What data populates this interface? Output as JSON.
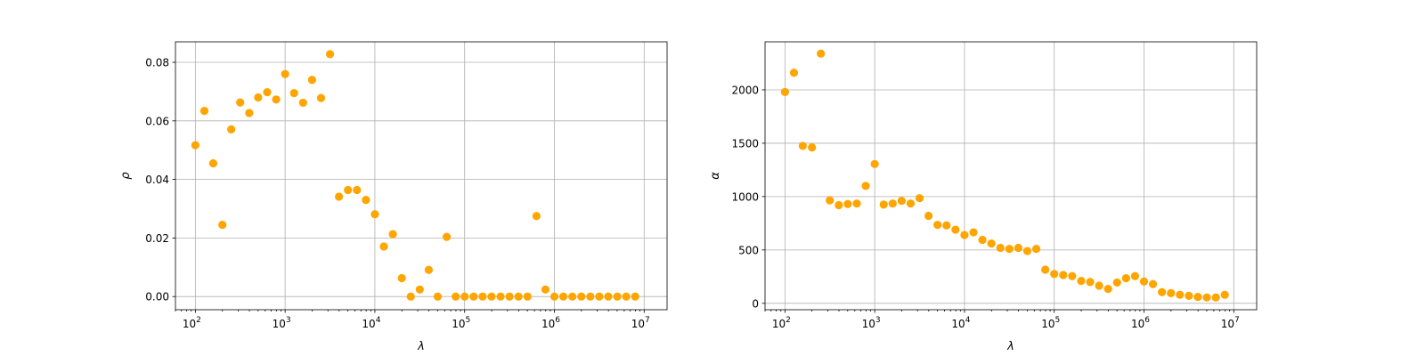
{
  "chart_data": [
    {
      "type": "scatter",
      "title": "",
      "xlabel": "λ",
      "ylabel": "ρ",
      "x_scale": "log",
      "xlim": [
        60,
        18000000
      ],
      "ylim": [
        -0.0045,
        0.087
      ],
      "grid": true,
      "legend": "none",
      "color": "#FFA500",
      "xticks": [
        {
          "value": 100,
          "base": "10",
          "exp": "2"
        },
        {
          "value": 1000,
          "base": "10",
          "exp": "3"
        },
        {
          "value": 10000,
          "base": "10",
          "exp": "4"
        },
        {
          "value": 100000,
          "base": "10",
          "exp": "5"
        },
        {
          "value": 1000000,
          "base": "10",
          "exp": "6"
        },
        {
          "value": 10000000,
          "base": "10",
          "exp": "7"
        }
      ],
      "yticks": [
        {
          "value": 0.0,
          "label": "0.00"
        },
        {
          "value": 0.02,
          "label": "0.02"
        },
        {
          "value": 0.04,
          "label": "0.04"
        },
        {
          "value": 0.06,
          "label": "0.06"
        },
        {
          "value": 0.08,
          "label": "0.08"
        }
      ],
      "points": [
        [
          100,
          0.0517
        ],
        [
          126,
          0.0634
        ],
        [
          158,
          0.0455
        ],
        [
          200,
          0.0245
        ],
        [
          251,
          0.0571
        ],
        [
          316,
          0.0663
        ],
        [
          398,
          0.0627
        ],
        [
          501,
          0.068
        ],
        [
          631,
          0.0698
        ],
        [
          794,
          0.0673
        ],
        [
          1000,
          0.076
        ],
        [
          1259,
          0.0695
        ],
        [
          1585,
          0.0662
        ],
        [
          1995,
          0.074
        ],
        [
          2512,
          0.0678
        ],
        [
          3162,
          0.0828
        ],
        [
          3981,
          0.0341
        ],
        [
          5012,
          0.0364
        ],
        [
          6310,
          0.0364
        ],
        [
          7943,
          0.033
        ],
        [
          10000,
          0.0281
        ],
        [
          12589,
          0.0171
        ],
        [
          15849,
          0.0213
        ],
        [
          19953,
          0.0063
        ],
        [
          25119,
          0.0
        ],
        [
          31623,
          0.0024
        ],
        [
          39811,
          0.0091
        ],
        [
          50119,
          0.0
        ],
        [
          63096,
          0.0204
        ],
        [
          79433,
          0.0
        ],
        [
          100000,
          0.0
        ],
        [
          125893,
          0.0
        ],
        [
          158489,
          0.0
        ],
        [
          199526,
          0.0
        ],
        [
          251189,
          0.0
        ],
        [
          316228,
          0.0
        ],
        [
          398107,
          0.0
        ],
        [
          501187,
          0.0
        ],
        [
          630957,
          0.0275
        ],
        [
          794328,
          0.0024
        ],
        [
          1000000,
          0.0
        ],
        [
          1258925,
          0.0
        ],
        [
          1584893,
          0.0
        ],
        [
          1995262,
          0.0
        ],
        [
          2511886,
          0.0
        ],
        [
          3162278,
          0.0
        ],
        [
          3981072,
          0.0
        ],
        [
          5011872,
          0.0
        ],
        [
          6309573,
          0.0
        ],
        [
          7943282,
          0.0
        ]
      ]
    },
    {
      "type": "scatter",
      "title": "",
      "xlabel": "λ",
      "ylabel": "α",
      "x_scale": "log",
      "xlim": [
        60,
        18000000
      ],
      "ylim": [
        -60,
        2450
      ],
      "grid": true,
      "legend": "none",
      "color": "#FFA500",
      "xticks": [
        {
          "value": 100,
          "base": "10",
          "exp": "2"
        },
        {
          "value": 1000,
          "base": "10",
          "exp": "3"
        },
        {
          "value": 10000,
          "base": "10",
          "exp": "4"
        },
        {
          "value": 100000,
          "base": "10",
          "exp": "5"
        },
        {
          "value": 1000000,
          "base": "10",
          "exp": "6"
        },
        {
          "value": 10000000,
          "base": "10",
          "exp": "7"
        }
      ],
      "yticks": [
        {
          "value": 0,
          "label": "0"
        },
        {
          "value": 500,
          "label": "500"
        },
        {
          "value": 1000,
          "label": "1000"
        },
        {
          "value": 1500,
          "label": "1500"
        },
        {
          "value": 2000,
          "label": "2000"
        }
      ],
      "points": [
        [
          100,
          1980
        ],
        [
          126,
          2160
        ],
        [
          158,
          1475
        ],
        [
          200,
          1460
        ],
        [
          251,
          2340
        ],
        [
          316,
          965
        ],
        [
          398,
          920
        ],
        [
          501,
          930
        ],
        [
          631,
          935
        ],
        [
          794,
          1100
        ],
        [
          1000,
          1305
        ],
        [
          1259,
          925
        ],
        [
          1585,
          935
        ],
        [
          1995,
          960
        ],
        [
          2512,
          935
        ],
        [
          3162,
          985
        ],
        [
          3981,
          820
        ],
        [
          5012,
          735
        ],
        [
          6310,
          730
        ],
        [
          7943,
          690
        ],
        [
          10000,
          640
        ],
        [
          12589,
          665
        ],
        [
          15849,
          595
        ],
        [
          19953,
          560
        ],
        [
          25119,
          520
        ],
        [
          31623,
          510
        ],
        [
          39811,
          520
        ],
        [
          50119,
          490
        ],
        [
          63096,
          510
        ],
        [
          79433,
          315
        ],
        [
          100000,
          275
        ],
        [
          125893,
          265
        ],
        [
          158489,
          255
        ],
        [
          199526,
          210
        ],
        [
          251189,
          200
        ],
        [
          316228,
          165
        ],
        [
          398107,
          135
        ],
        [
          501187,
          195
        ],
        [
          630957,
          235
        ],
        [
          794328,
          255
        ],
        [
          1000000,
          205
        ],
        [
          1258925,
          180
        ],
        [
          1584893,
          105
        ],
        [
          1995262,
          95
        ],
        [
          2511886,
          80
        ],
        [
          3162278,
          70
        ],
        [
          3981072,
          60
        ],
        [
          5011872,
          55
        ],
        [
          6309573,
          55
        ],
        [
          7943282,
          80
        ]
      ]
    }
  ]
}
